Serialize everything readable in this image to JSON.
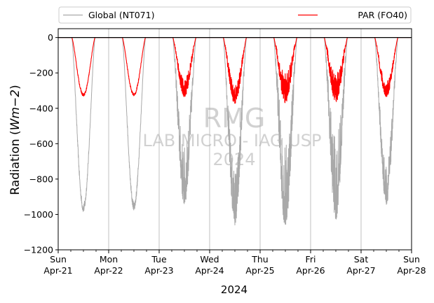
{
  "chart_data": {
    "type": "line",
    "title": "",
    "xlabel": "2024",
    "ylabel": "Radiation",
    "ylabel_unit": "Wm−2",
    "ylim": [
      -1200,
      50
    ],
    "yticks": [
      0,
      -200,
      -400,
      -600,
      -800,
      -1000,
      -1200
    ],
    "ytick_labels": [
      "0",
      "−200",
      "−400",
      "−600",
      "−800",
      "−1000",
      "−1200"
    ],
    "xlim_days": [
      0,
      7
    ],
    "x_ticks": [
      {
        "day": "Sun",
        "date": "Apr-21"
      },
      {
        "day": "Mon",
        "date": "Apr-22"
      },
      {
        "day": "Tue",
        "date": "Apr-23"
      },
      {
        "day": "Wed",
        "date": "Apr-24"
      },
      {
        "day": "Thu",
        "date": "Apr-25"
      },
      {
        "day": "Fri",
        "date": "Apr-26"
      },
      {
        "day": "Sat",
        "date": "Apr-27"
      },
      {
        "day": "Sun",
        "date": "Apr-28"
      }
    ],
    "grid": "x-major",
    "zero_line": 0,
    "legend_position": "top",
    "watermark": {
      "line1": "RMG",
      "line2": "LAB MICRO - IAG USP",
      "line3": "2024"
    },
    "series": [
      {
        "name": "Global (NT071)",
        "color": "#a9a9a9",
        "daily_peak": [
          -985,
          -975,
          -950,
          -1060,
          -1075,
          -1030,
          -945
        ],
        "noise": [
          0.05,
          0.05,
          0.35,
          0.3,
          0.45,
          0.45,
          0.25
        ]
      },
      {
        "name": "PAR (FO40)",
        "color": "#ff0000",
        "daily_peak": [
          -332,
          -330,
          -335,
          -375,
          -370,
          -365,
          -335
        ],
        "noise": [
          0.05,
          0.05,
          0.3,
          0.3,
          0.45,
          0.45,
          0.25
        ]
      }
    ]
  }
}
